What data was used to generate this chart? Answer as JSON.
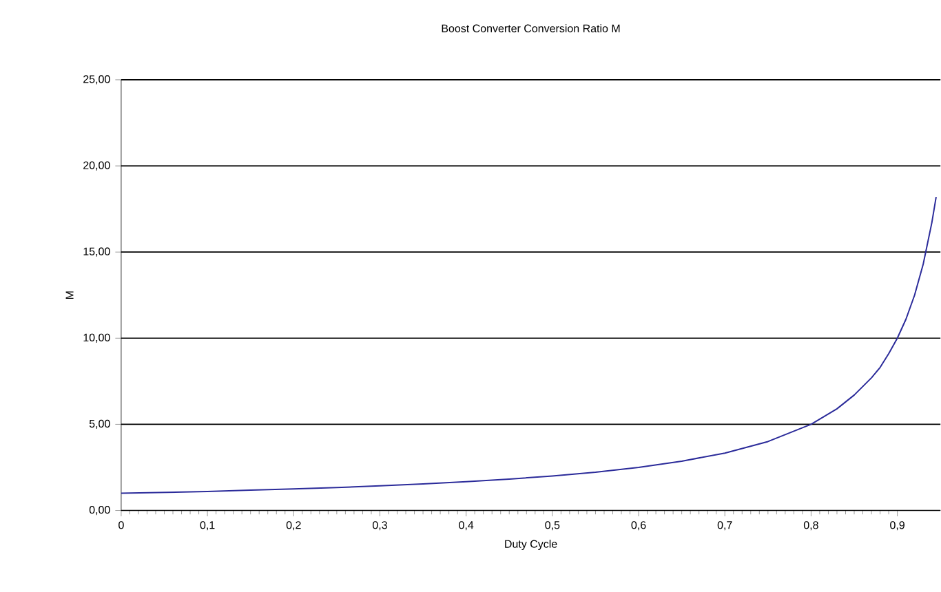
{
  "chart_data": {
    "type": "line",
    "title": "Boost Converter Conversion Ratio M",
    "xlabel": "Duty Cycle",
    "ylabel": "M",
    "x": [
      0,
      0.05,
      0.1,
      0.15,
      0.2,
      0.25,
      0.3,
      0.35,
      0.4,
      0.45,
      0.5,
      0.55,
      0.6,
      0.65,
      0.7,
      0.75,
      0.8,
      0.83,
      0.85,
      0.87,
      0.88,
      0.89,
      0.9,
      0.91,
      0.92,
      0.93,
      0.94,
      0.945
    ],
    "series": [
      {
        "color": "#2b2b9a",
        "values": [
          1.0,
          1.05,
          1.1,
          1.18,
          1.25,
          1.33,
          1.43,
          1.54,
          1.67,
          1.82,
          2.0,
          2.22,
          2.5,
          2.86,
          3.33,
          4.0,
          5.0,
          5.9,
          6.7,
          7.7,
          8.3,
          9.1,
          10.0,
          11.1,
          12.5,
          14.3,
          16.7,
          18.2
        ]
      }
    ],
    "xlim": [
      0,
      0.95
    ],
    "ylim": [
      0,
      25
    ],
    "xticks": [
      0,
      {
        "value": 0.1,
        "label": "0,1"
      },
      {
        "value": 0.2,
        "label": "0,2"
      },
      {
        "value": 0.3,
        "label": "0,3"
      },
      {
        "value": 0.4,
        "label": "0,4"
      },
      {
        "value": 0.5,
        "label": "0,5"
      },
      {
        "value": 0.6,
        "label": "0,6"
      },
      {
        "value": 0.7,
        "label": "0,7"
      },
      {
        "value": 0.8,
        "label": "0,8"
      },
      {
        "value": 0.9,
        "label": "0,9"
      }
    ],
    "yticks": [
      {
        "value": 0,
        "label": "0,00"
      },
      {
        "value": 5,
        "label": "5,00"
      },
      {
        "value": 10,
        "label": "10,00"
      },
      {
        "value": 15,
        "label": "15,00"
      },
      {
        "value": 20,
        "label": "20,00"
      },
      {
        "value": 25,
        "label": "25,00"
      }
    ],
    "grid": "y",
    "marker": "none",
    "line_style": "solid"
  }
}
